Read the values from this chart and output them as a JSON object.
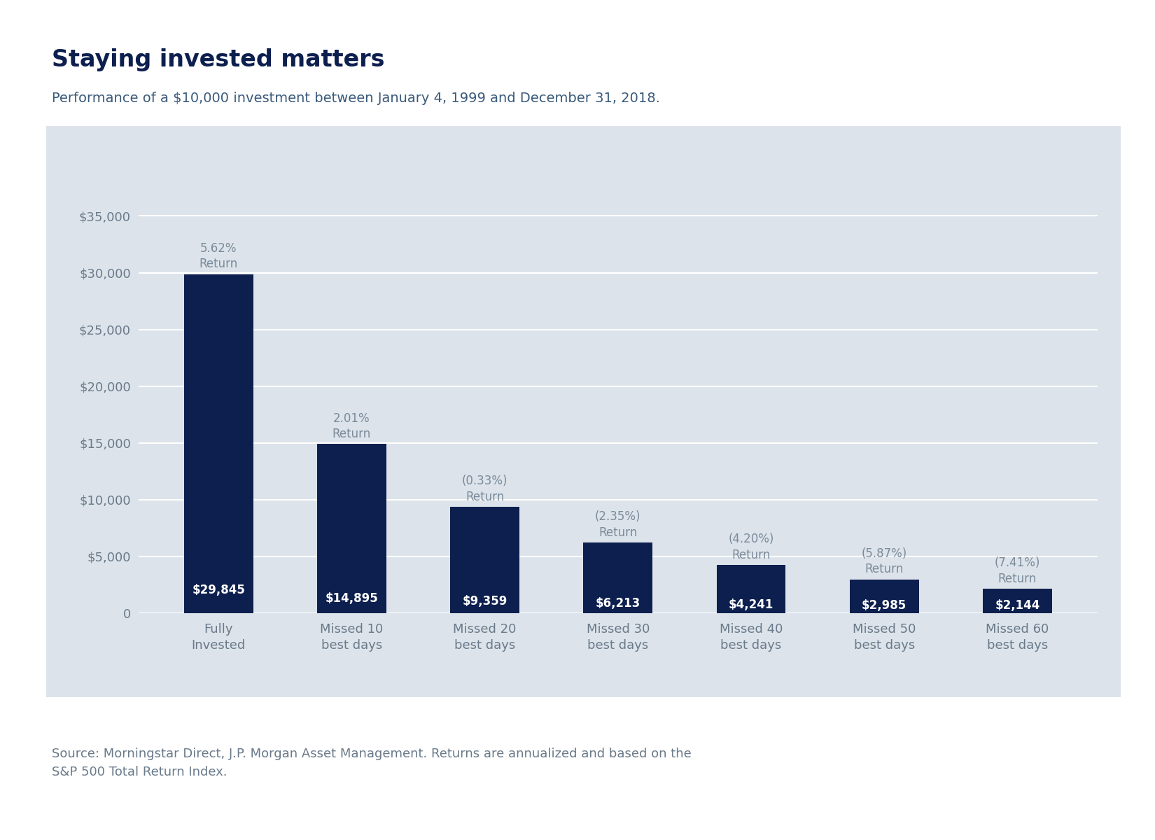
{
  "title": "Staying invested matters",
  "subtitle": "Performance of a $10,000 investment between January 4, 1999 and December 31, 2018.",
  "footnote": "Source: Morningstar Direct, J.P. Morgan Asset Management. Returns are annualized and based on the\nS&P 500 Total Return Index.",
  "categories": [
    "Fully\nInvested",
    "Missed 10\nbest days",
    "Missed 20\nbest days",
    "Missed 30\nbest days",
    "Missed 40\nbest days",
    "Missed 50\nbest days",
    "Missed 60\nbest days"
  ],
  "values": [
    29845,
    14895,
    9359,
    6213,
    4241,
    2985,
    2144
  ],
  "returns": [
    "5.62%",
    "2.01%",
    "(0.33%)",
    "(2.35%)",
    "(4.20%)",
    "(5.87%)",
    "(7.41%)"
  ],
  "value_labels": [
    "$29,845",
    "$14,895",
    "$9,359",
    "$6,213",
    "$4,241",
    "$2,985",
    "$2,144"
  ],
  "bar_color": "#0d1f4e",
  "panel_background": "#dce3ea",
  "outer_background": "#ffffff",
  "text_color_title": "#0d1f4e",
  "text_color_subtitle": "#3a5a7a",
  "text_color_axis": "#6a7a8a",
  "text_color_return": "#7a8a9a",
  "gridline_color": "#ffffff",
  "ylim": [
    0,
    37000
  ],
  "yticks": [
    0,
    5000,
    10000,
    15000,
    20000,
    25000,
    30000,
    35000
  ],
  "title_fontsize": 24,
  "subtitle_fontsize": 14,
  "footnote_fontsize": 13,
  "bar_label_fontsize": 12,
  "tick_fontsize": 13,
  "xtick_fontsize": 13
}
